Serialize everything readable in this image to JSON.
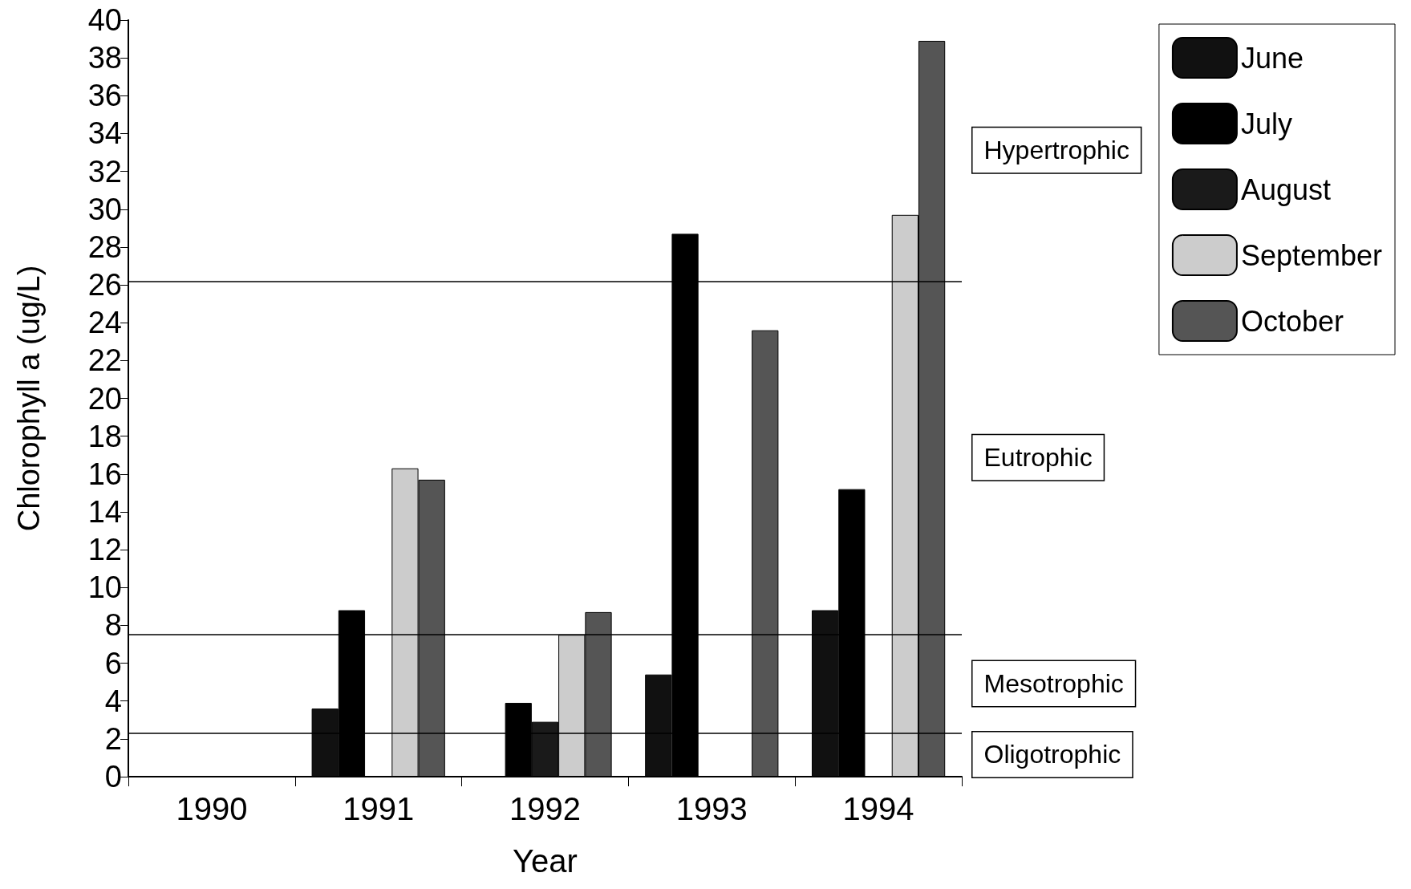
{
  "chart_data": {
    "type": "bar",
    "xlabel": "Year",
    "ylabel": "Chlorophyll a (ug/L)",
    "categories": [
      "1990",
      "1991",
      "1992",
      "1993",
      "1994"
    ],
    "series": [
      {
        "name": "June",
        "color": "#111111",
        "values": [
          null,
          3.6,
          null,
          5.4,
          8.8
        ]
      },
      {
        "name": "July",
        "color": "#000000",
        "values": [
          null,
          8.8,
          3.9,
          28.7,
          15.2
        ]
      },
      {
        "name": "August",
        "color": "#1a1a1a",
        "values": [
          null,
          null,
          2.9,
          null,
          null
        ]
      },
      {
        "name": "September",
        "color": "#cccccc",
        "values": [
          null,
          16.3,
          7.5,
          null,
          29.7
        ]
      },
      {
        "name": "October",
        "color": "#555555",
        "values": [
          null,
          15.7,
          8.7,
          23.6,
          38.9
        ]
      }
    ],
    "ylim": [
      0,
      40
    ],
    "yticks": [
      0,
      2,
      4,
      6,
      8,
      10,
      12,
      14,
      16,
      18,
      20,
      22,
      24,
      26,
      28,
      30,
      32,
      34,
      36,
      38,
      40
    ],
    "ref_lines": [
      {
        "axis": "y",
        "value": 26.2
      },
      {
        "axis": "y",
        "value": 7.5
      },
      {
        "axis": "y",
        "value": 2.3
      }
    ],
    "annotations": [
      "Hypertrophic",
      "Eutrophic",
      "Mesotrophic",
      "Oligotrophic"
    ],
    "grid": false,
    "legend": "right"
  }
}
